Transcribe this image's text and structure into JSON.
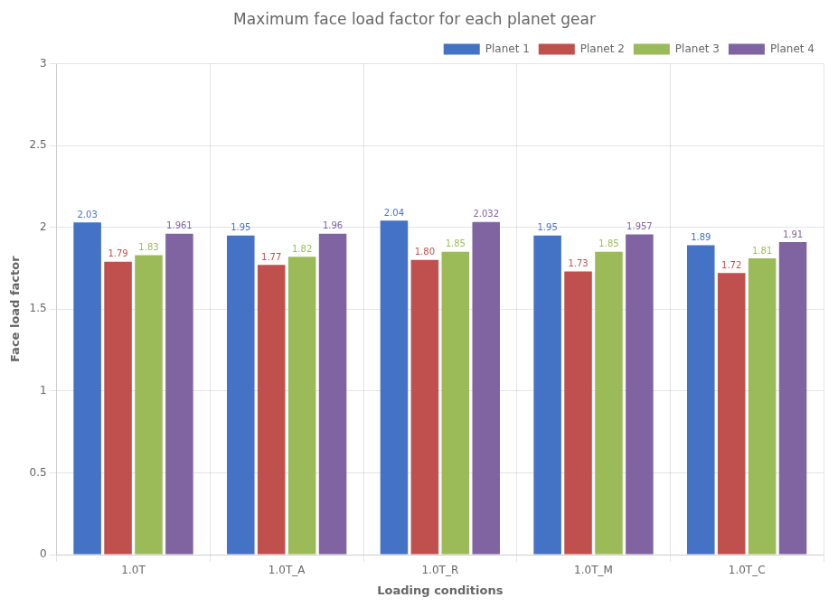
{
  "chart_data": {
    "type": "bar",
    "title": "Maximum face load factor for each planet gear",
    "xlabel": "Loading conditions",
    "ylabel": "Face load factor",
    "categories": [
      "1.0T",
      "1.0T_A",
      "1.0T_R",
      "1.0T_M",
      "1.0T_C"
    ],
    "series": [
      {
        "name": "Planet 1",
        "color": "#4472C4",
        "values": [
          2.03,
          1.95,
          2.04,
          1.95,
          1.89
        ],
        "value_labels": [
          "2.03",
          "1.95",
          "2.04",
          "1.95",
          "1.89"
        ]
      },
      {
        "name": "Planet 2",
        "color": "#C0504D",
        "values": [
          1.79,
          1.77,
          1.8,
          1.73,
          1.72
        ],
        "value_labels": [
          "1.79",
          "1.77",
          "1.80",
          "1.73",
          "1.72"
        ]
      },
      {
        "name": "Planet 3",
        "color": "#9BBB59",
        "values": [
          1.83,
          1.82,
          1.85,
          1.85,
          1.81
        ],
        "value_labels": [
          "1.83",
          "1.82",
          "1.85",
          "1.85",
          "1.81"
        ]
      },
      {
        "name": "Planet 4",
        "color": "#8064A2",
        "values": [
          1.961,
          1.96,
          2.032,
          1.957,
          1.91
        ],
        "value_labels": [
          "1.961",
          "1.96",
          "2.032",
          "1.957",
          "1.91"
        ]
      }
    ],
    "ylim": [
      0,
      3
    ],
    "yticks": [
      0,
      0.5,
      1,
      1.5,
      2,
      2.5,
      3
    ],
    "grid": true,
    "legend": "upper right",
    "data_labels": true
  }
}
